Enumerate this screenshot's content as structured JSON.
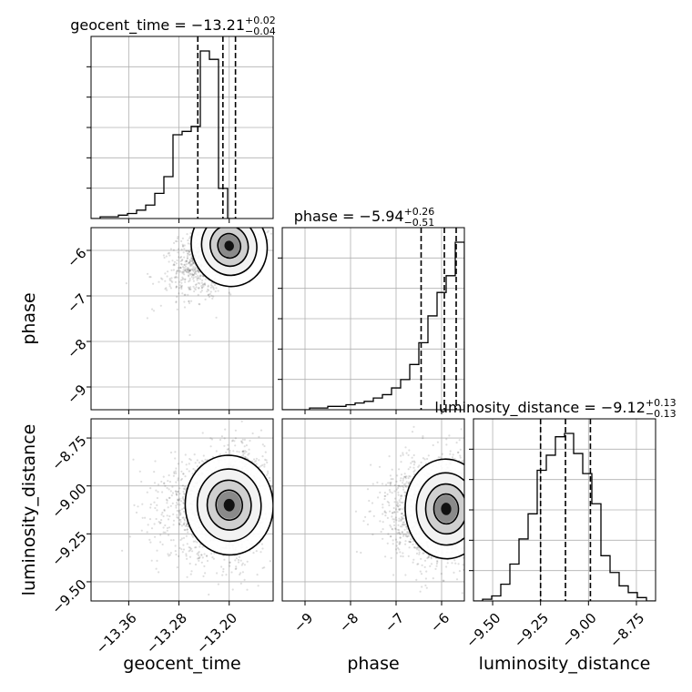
{
  "chart_data": {
    "type": "corner",
    "grid": true,
    "parameters": [
      {
        "name": "geocent_time",
        "xlabel": "geocent_time",
        "range": [
          -13.42,
          -13.13
        ],
        "ticks": [
          -13.36,
          -13.28,
          -13.2
        ],
        "tick_labels": [
          "−13.36",
          "−13.28",
          "−13.20"
        ],
        "title": {
          "prefix": "geocent_time = −13.21",
          "upper": "+0.02",
          "lower": "−0.04"
        },
        "median": -13.21,
        "quantiles": [
          -13.25,
          -13.21,
          -13.19
        ],
        "hist": {
          "edges_start": -13.42,
          "bin_width": 0.0145,
          "counts": [
            0,
            1,
            1,
            2,
            3,
            5,
            8,
            15,
            25,
            50,
            52,
            55,
            100,
            95,
            18,
            0
          ]
        }
      },
      {
        "name": "phase",
        "ylabel": "phase",
        "xlabel": "phase",
        "range": [
          -9.5,
          -5.5
        ],
        "ticks": [
          -9,
          -8,
          -7,
          -6
        ],
        "tick_labels": [
          "−9",
          "−8",
          "−7",
          "−6"
        ],
        "title": {
          "prefix": "phase = −5.94",
          "upper": "+0.26",
          "lower": "−0.51"
        },
        "median": -5.94,
        "quantiles": [
          -6.45,
          -5.94,
          -5.68
        ],
        "hist": {
          "edges_start": -9.5,
          "bin_width": 0.2,
          "counts": [
            0,
            0,
            0,
            1,
            1,
            2,
            2,
            3,
            4,
            5,
            7,
            9,
            13,
            18,
            27,
            40,
            56,
            70,
            80,
            100
          ]
        }
      },
      {
        "name": "luminosity_distance",
        "ylabel": "luminosity_distance",
        "xlabel": "luminosity_distance",
        "range": [
          -9.6,
          -8.65
        ],
        "ticks": [
          -9.5,
          -9.25,
          -9.0,
          -8.75
        ],
        "tick_labels": [
          "−9.50",
          "−9.25",
          "−9.00",
          "−8.75"
        ],
        "y_tick_labels": [
          "−9.50",
          "−9.25",
          "−9.00",
          "−8.75"
        ],
        "title": {
          "prefix": "luminosity_distance = −9.12",
          "upper": "+0.13",
          "lower": "−0.13"
        },
        "median": -9.12,
        "quantiles": [
          -9.25,
          -9.12,
          -8.99
        ],
        "hist": {
          "edges_start": -9.6,
          "bin_width": 0.0475,
          "counts": [
            0,
            1,
            3,
            10,
            22,
            37,
            52,
            78,
            87,
            98,
            100,
            88,
            76,
            58,
            27,
            17,
            9,
            5,
            2,
            0
          ]
        }
      }
    ],
    "pairs": [
      {
        "x": "geocent_time",
        "y": "phase",
        "peak": [
          -13.2,
          -5.9
        ],
        "sigma": [
          0.03,
          0.45
        ],
        "rho": 0.55
      },
      {
        "x": "geocent_time",
        "y": "luminosity_distance",
        "peak": [
          -13.2,
          -9.1
        ],
        "sigma": [
          0.035,
          0.13
        ],
        "rho": 0.1
      },
      {
        "x": "phase",
        "y": "luminosity_distance",
        "peak": [
          -5.9,
          -9.12
        ],
        "sigma": [
          0.45,
          0.13
        ],
        "rho": 0.05
      }
    ]
  }
}
